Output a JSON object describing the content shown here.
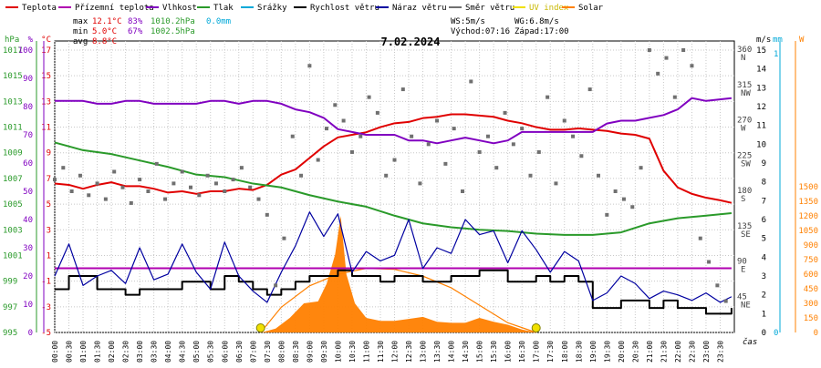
{
  "chart_data": {
    "type": "line",
    "title": "7.02.2024",
    "legend": [
      {
        "label": "Teplota",
        "color": "#e00000"
      },
      {
        "label": "Přízemní teplota",
        "color": "#b000b0"
      },
      {
        "label": "Vlhkost",
        "color": "#8000c0"
      },
      {
        "label": "Tlak",
        "color": "#2a9a2a"
      },
      {
        "label": "Srážky",
        "color": "#00a8d8"
      },
      {
        "label": "Rychlost větru",
        "color": "#000000"
      },
      {
        "label": "Náraz větru",
        "color": "#0000a0"
      },
      {
        "label": "Směr větru",
        "color": "#707070"
      },
      {
        "label": "UV index",
        "color": "#f0e000"
      },
      {
        "label": "Solar",
        "color": "#ff8000"
      }
    ],
    "stats": {
      "max_label": "max",
      "max_temp": "12.1°C",
      "max_hum": "83%",
      "max_press": "1010.2hPa",
      "max_rain": "0.0mm",
      "min_label": "min",
      "min_temp": "5.0°C",
      "min_hum": "67%",
      "min_press": "1002.5hPa",
      "avg_label": "avg",
      "avg_temp": "8.8°C",
      "ws": "WS:5m/s",
      "wg": "WG:6.8m/s",
      "sunrise": "Východ:07:16",
      "sunset": "Západ:17:00"
    },
    "axis_units": {
      "hpa": "hPa",
      "pct": "%",
      "c": "°C",
      "ms": "m/s",
      "mm": "mm",
      "w": "W"
    },
    "axes": {
      "hpa": {
        "ticks": [
          995,
          997,
          999,
          1001,
          1003,
          1005,
          1007,
          1009,
          1011,
          1013,
          1015,
          1017
        ],
        "range": [
          995,
          1017
        ]
      },
      "pct": {
        "ticks": [
          0,
          10,
          20,
          30,
          40,
          50,
          60,
          70,
          80,
          90,
          100
        ],
        "range": [
          0,
          100
        ]
      },
      "c": {
        "ticks": [
          -5,
          -3,
          -1,
          1,
          3,
          5,
          7,
          9,
          11,
          13,
          15,
          17
        ],
        "range": [
          -5,
          17
        ]
      },
      "ms": {
        "ticks": [
          0,
          1,
          2,
          3,
          4,
          5,
          6,
          7,
          8,
          9,
          10,
          11,
          12,
          13,
          14,
          15
        ],
        "range": [
          0,
          15
        ]
      },
      "mm": {
        "ticks": [
          0,
          1
        ],
        "range": [
          0,
          1
        ]
      },
      "w": {
        "ticks": [
          0,
          150,
          300,
          450,
          600,
          750,
          900,
          1050,
          1200,
          1350,
          1500
        ],
        "range": [
          0,
          1500
        ]
      },
      "dir": {
        "ticks": [
          {
            "deg": 360,
            "label": "360",
            "name": "N"
          },
          {
            "deg": 315,
            "label": "315",
            "name": "NW"
          },
          {
            "deg": 270,
            "label": "270",
            "name": "W"
          },
          {
            "deg": 225,
            "label": "225",
            "name": "SW"
          },
          {
            "deg": 180,
            "label": "180",
            "name": "S"
          },
          {
            "deg": 135,
            "label": "135",
            "name": "SE"
          },
          {
            "deg": 90,
            "label": "90",
            "name": "E"
          },
          {
            "deg": 45,
            "label": "45",
            "name": "NE"
          }
        ]
      }
    },
    "time_ticks": [
      "00:00",
      "00:30",
      "01:00",
      "01:30",
      "02:00",
      "02:30",
      "03:00",
      "03:30",
      "04:00",
      "04:30",
      "05:00",
      "05:30",
      "06:00",
      "06:30",
      "07:00",
      "07:30",
      "08:00",
      "08:30",
      "09:00",
      "09:30",
      "10:00",
      "10:30",
      "11:00",
      "11:30",
      "12:00",
      "12:30",
      "13:00",
      "13:30",
      "14:00",
      "14:30",
      "15:00",
      "15:30",
      "16:00",
      "16:30",
      "17:00",
      "17:30",
      "18:00",
      "18:30",
      "19:00",
      "19:30",
      "20:00",
      "20:30",
      "21:00",
      "21:30",
      "22:00",
      "22:30",
      "23:00",
      "23:30"
    ],
    "xlabel": "čas",
    "series": [
      {
        "name": "Teplota",
        "axis": "c",
        "color": "#e00000",
        "x": [
          0,
          0.5,
          1,
          1.5,
          2,
          2.5,
          3,
          3.5,
          4,
          4.5,
          5,
          5.5,
          6,
          6.5,
          7,
          7.5,
          8,
          8.5,
          9,
          9.5,
          10,
          10.5,
          11,
          11.5,
          12,
          12.5,
          13,
          13.5,
          14,
          14.5,
          15,
          15.5,
          16,
          16.5,
          17,
          17.5,
          18,
          18.5,
          19,
          19.5,
          20,
          20.5,
          21,
          21.5,
          22,
          22.5,
          23,
          23.5,
          23.9
        ],
        "values": [
          6.6,
          6.5,
          6.2,
          6.5,
          6.7,
          6.4,
          6.4,
          6.2,
          5.9,
          6.0,
          5.8,
          6.0,
          6.0,
          6.2,
          6.1,
          6.5,
          7.3,
          7.7,
          8.6,
          9.5,
          10.2,
          10.4,
          10.6,
          11.0,
          11.3,
          11.4,
          11.7,
          11.8,
          12.0,
          12.0,
          11.9,
          11.8,
          11.5,
          11.3,
          11.0,
          10.8,
          10.8,
          10.9,
          10.8,
          10.7,
          10.5,
          10.4,
          10.1,
          7.6,
          6.3,
          5.8,
          5.5,
          5.3,
          5.1
        ]
      },
      {
        "name": "Přízemní teplota",
        "axis": "c",
        "color": "#b000b0",
        "x": [
          0,
          23.9
        ],
        "values": [
          0,
          0
        ]
      },
      {
        "name": "Vlhkost",
        "axis": "pct",
        "color": "#8000c0",
        "x": [
          0,
          1,
          1.5,
          2,
          2.5,
          3,
          3.5,
          4,
          4.5,
          5,
          5.5,
          6,
          6.5,
          7,
          7.5,
          8,
          8.5,
          9,
          9.5,
          10,
          10.5,
          11,
          11.5,
          12,
          12.5,
          13,
          13.5,
          14,
          14.5,
          15,
          15.5,
          16,
          16.5,
          17,
          17.5,
          18,
          18.5,
          19,
          19.5,
          20,
          20.5,
          21,
          21.5,
          22,
          22.5,
          23,
          23.9
        ],
        "values": [
          82,
          82,
          81,
          81,
          82,
          82,
          81,
          81,
          81,
          81,
          82,
          82,
          81,
          82,
          82,
          81,
          79,
          78,
          76,
          72,
          71,
          70,
          70,
          70,
          68,
          68,
          67,
          68,
          69,
          68,
          67,
          68,
          71,
          71,
          71,
          71,
          71,
          71,
          74,
          75,
          75,
          76,
          77,
          79,
          83,
          82,
          83
        ]
      },
      {
        "name": "Tlak",
        "axis": "hpa",
        "color": "#2a9a2a",
        "x": [
          0,
          1,
          2,
          3,
          4,
          5,
          6,
          7,
          8,
          9,
          10,
          11,
          12,
          13,
          14,
          15,
          16,
          17,
          18,
          19,
          20,
          21,
          22,
          23,
          23.9
        ],
        "values": [
          1009.8,
          1009.2,
          1008.9,
          1008.4,
          1007.9,
          1007.3,
          1007.1,
          1006.6,
          1006.3,
          1005.7,
          1005.2,
          1004.8,
          1004.1,
          1003.5,
          1003.2,
          1003.0,
          1002.9,
          1002.7,
          1002.6,
          1002.6,
          1002.8,
          1003.5,
          1003.9,
          1004.1,
          1004.3
        ]
      },
      {
        "name": "Rychlost větru",
        "axis": "ms",
        "color": "#000000",
        "x": [
          0,
          0.5,
          1,
          1.5,
          2,
          2.5,
          3,
          3.5,
          4,
          4.5,
          5,
          5.5,
          6,
          6.5,
          7,
          7.5,
          8,
          8.5,
          9,
          9.5,
          10,
          10.5,
          11,
          11.5,
          12,
          12.5,
          13,
          13.5,
          14,
          14.5,
          15,
          15.5,
          16,
          16.5,
          17,
          17.5,
          18,
          18.5,
          19,
          19.5,
          20,
          20.5,
          21,
          21.5,
          22,
          22.5,
          23,
          23.5,
          23.9
        ],
        "values": [
          2.3,
          3.0,
          3.0,
          2.3,
          2.3,
          2.0,
          2.3,
          2.3,
          2.3,
          2.7,
          2.7,
          2.3,
          3.0,
          2.7,
          2.3,
          2.0,
          2.3,
          2.7,
          3.0,
          3.0,
          3.3,
          3.0,
          3.0,
          2.7,
          3.0,
          3.0,
          2.7,
          2.7,
          3.0,
          3.0,
          3.3,
          3.3,
          2.7,
          2.7,
          3.0,
          2.7,
          3.0,
          2.7,
          1.3,
          1.3,
          1.7,
          1.7,
          1.3,
          1.7,
          1.3,
          1.3,
          1.0,
          1.0,
          1.3
        ]
      },
      {
        "name": "Náraz větru",
        "axis": "ms",
        "color": "#0000a0",
        "x": [
          0,
          0.5,
          1,
          1.5,
          2,
          2.5,
          3,
          3.5,
          4,
          4.5,
          5,
          5.5,
          6,
          6.5,
          7,
          7.5,
          8,
          8.5,
          9,
          9.5,
          10,
          10.5,
          11,
          11.5,
          12,
          12.5,
          13,
          13.5,
          14,
          14.5,
          15,
          15.5,
          16,
          16.5,
          17,
          17.5,
          18,
          18.5,
          19,
          19.5,
          20,
          20.5,
          21,
          21.5,
          22,
          22.5,
          23,
          23.5,
          23.9
        ],
        "values": [
          3.0,
          4.7,
          2.5,
          3.0,
          3.3,
          2.6,
          4.5,
          2.8,
          3.1,
          4.7,
          3.2,
          2.3,
          4.8,
          3.0,
          2.2,
          1.6,
          3.2,
          4.6,
          6.4,
          5.1,
          6.3,
          3.2,
          4.3,
          3.8,
          4.1,
          6.0,
          3.4,
          4.5,
          4.2,
          6.0,
          5.2,
          5.4,
          3.7,
          5.4,
          4.4,
          3.2,
          4.3,
          3.8,
          1.7,
          2.1,
          3.0,
          2.6,
          1.8,
          2.2,
          2.0,
          1.7,
          2.1,
          1.6,
          1.9
        ]
      },
      {
        "name": "Směr větru",
        "axis": "dir",
        "color": "#707070",
        "x": [
          0,
          0.3,
          0.6,
          0.9,
          1.2,
          1.5,
          1.8,
          2.1,
          2.4,
          2.7,
          3,
          3.3,
          3.6,
          3.9,
          4.2,
          4.5,
          4.8,
          5.1,
          5.4,
          5.7,
          6,
          6.3,
          6.6,
          6.9,
          7.2,
          7.5,
          7.8,
          8.1,
          8.4,
          8.7,
          9,
          9.3,
          9.6,
          9.9,
          10.2,
          10.5,
          10.8,
          11.1,
          11.4,
          11.7,
          12,
          12.3,
          12.6,
          12.9,
          13.2,
          13.5,
          13.8,
          14.1,
          14.4,
          14.7,
          15,
          15.3,
          15.6,
          15.9,
          16.2,
          16.5,
          16.8,
          17.1,
          17.4,
          17.7,
          18,
          18.3,
          18.6,
          18.9,
          19.2,
          19.5,
          19.8,
          20.1,
          20.4,
          20.7,
          21,
          21.3,
          21.6,
          21.9,
          22.2,
          22.5,
          22.8,
          23.1,
          23.4,
          23.7
        ],
        "values": [
          195,
          210,
          180,
          200,
          175,
          190,
          170,
          205,
          185,
          165,
          195,
          180,
          215,
          170,
          190,
          205,
          185,
          175,
          200,
          190,
          180,
          195,
          210,
          185,
          170,
          150,
          60,
          120,
          250,
          200,
          340,
          220,
          260,
          290,
          270,
          230,
          250,
          300,
          280,
          200,
          220,
          310,
          250,
          190,
          240,
          270,
          215,
          260,
          180,
          320,
          230,
          250,
          210,
          280,
          240,
          260,
          200,
          230,
          300,
          190,
          270,
          250,
          225,
          310,
          200,
          150,
          180,
          170,
          160,
          210,
          360,
          330,
          350,
          300,
          360,
          340,
          120,
          90,
          60,
          40
        ]
      }
    ],
    "solar": {
      "axis": "w",
      "x": [
        7.3,
        7.8,
        8.3,
        8.8,
        9.3,
        9.6,
        9.9,
        10.1,
        10.3,
        10.6,
        11,
        11.5,
        12,
        12.5,
        13,
        13.5,
        14,
        14.5,
        15,
        15.5,
        16,
        16.5,
        17
      ],
      "values": [
        0,
        40,
        150,
        300,
        320,
        500,
        800,
        1200,
        600,
        300,
        150,
        120,
        120,
        140,
        160,
        110,
        100,
        100,
        150,
        110,
        80,
        30,
        0
      ]
    },
    "solar_max": {
      "axis": "w",
      "x": [
        7.27,
        8,
        9,
        10,
        11,
        12,
        13,
        14,
        15,
        16,
        17
      ],
      "values": [
        0,
        260,
        480,
        600,
        660,
        650,
        580,
        460,
        280,
        100,
        0
      ]
    },
    "sun_markers": [
      7.27,
      17.0
    ],
    "xlim": [
      0,
      24
    ]
  }
}
